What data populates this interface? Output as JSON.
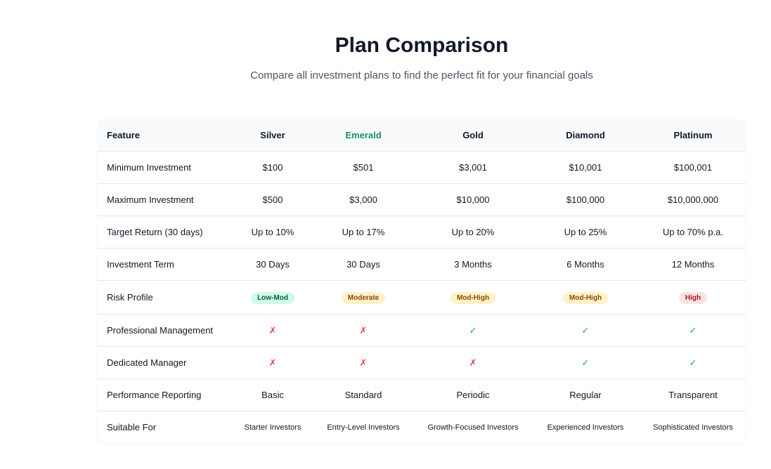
{
  "header": {
    "title": "Plan Comparison",
    "subtitle": "Compare all investment plans to find the perfect fit for your financial goals"
  },
  "table": {
    "columns": [
      "Feature",
      "Silver",
      "Emerald",
      "Gold",
      "Diamond",
      "Platinum"
    ],
    "rows": [
      [
        "Minimum Investment",
        "$100",
        "$501",
        "$3,001",
        "$10,001",
        "$100,001"
      ],
      [
        "Maximum Investment",
        "$500",
        "$3,000",
        "$10,000",
        "$100,000",
        "$10,000,000"
      ],
      [
        "Target Return (30 days)",
        "Up to 10%",
        "Up to 17%",
        "Up to 20%",
        "Up to 25%",
        "Up to 70% p.a."
      ],
      [
        "Investment Term",
        "30 Days",
        "30 Days",
        "3 Months",
        "6 Months",
        "12 Months"
      ],
      [
        "Risk Profile",
        "Low-Mod",
        "Moderate",
        "Mod-High",
        "Mod-High",
        "High"
      ],
      [
        "Professional Management",
        "✗",
        "✗",
        "✓",
        "✓",
        "✓"
      ],
      [
        "Dedicated Manager",
        "✗",
        "✗",
        "✗",
        "✓",
        "✓"
      ],
      [
        "Performance Reporting",
        "Basic",
        "Standard",
        "Periodic",
        "Regular",
        "Transparent"
      ],
      [
        "Suitable For",
        "Starter Investors",
        "Entry-Level Investors",
        "Growth-Focused Investors",
        "Experienced Investors",
        "Sophisticated Investors"
      ]
    ]
  }
}
